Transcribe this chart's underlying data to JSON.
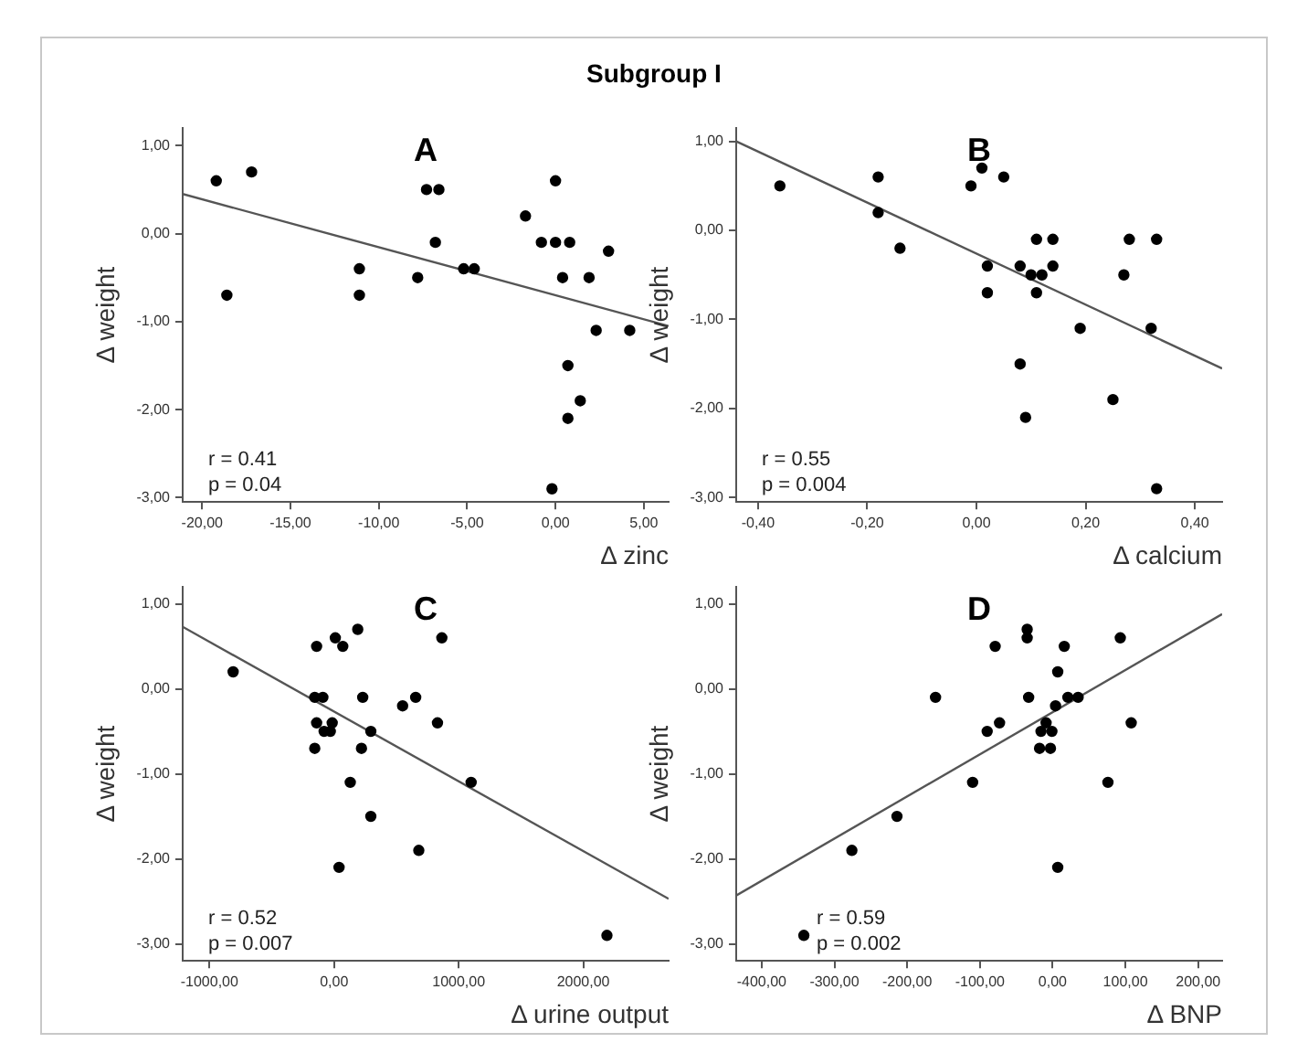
{
  "chart_data": [
    {
      "type": "scatter",
      "title": "A",
      "subtitle": "Subgroup I",
      "xlabel": "Δ zinc",
      "ylabel": "Δ weight",
      "annotations": [
        "r = 0.41",
        "p = 0.04"
      ],
      "grid": false,
      "legend": false,
      "marker": "circle",
      "xlim": [
        -21.1,
        6.4
      ],
      "xticks": [
        {
          "value": -20,
          "label": "-20,00"
        },
        {
          "value": -15,
          "label": "-15,00"
        },
        {
          "value": -10,
          "label": "-10,00"
        },
        {
          "value": -5,
          "label": "-5,00"
        },
        {
          "value": 0,
          "label": "0,00"
        },
        {
          "value": 5,
          "label": "5,00"
        }
      ],
      "ylim": [
        -3.05,
        1.2
      ],
      "yticks": [
        {
          "value": 1,
          "label": "1,00"
        },
        {
          "value": 0,
          "label": "0,00"
        },
        {
          "value": -1,
          "label": "-1,00"
        },
        {
          "value": -2,
          "label": "-2,00"
        },
        {
          "value": -3,
          "label": "-3,00"
        }
      ],
      "series": [
        {
          "color": "#000000",
          "x": [
            -19.2,
            -18.6,
            -17.2,
            -11.1,
            -11.1,
            -7.8,
            -7.3,
            -6.8,
            -6.6,
            -5.2,
            -4.6,
            -1.7,
            -0.8,
            0.0,
            0.0,
            -0.2,
            0.4,
            0.8,
            0.7,
            0.7,
            1.4,
            1.9,
            2.3,
            3.0,
            4.2
          ],
          "values": [
            0.6,
            -0.7,
            0.7,
            -0.4,
            -0.7,
            -0.5,
            0.5,
            -0.1,
            0.5,
            -0.4,
            -0.4,
            0.2,
            -0.1,
            0.6,
            -0.1,
            -2.9,
            -0.5,
            -0.1,
            -1.5,
            -2.1,
            -1.9,
            -0.5,
            -1.1,
            -0.2,
            -1.1
          ]
        },
        {
          "type": "line",
          "marker": "none",
          "color": "#555555",
          "x": [
            -21.1,
            6.4
          ],
          "values": [
            0.45,
            -1.05
          ]
        }
      ]
    },
    {
      "type": "scatter",
      "title": "B",
      "xlabel": "Δ calcium",
      "ylabel": "Δ weight",
      "annotations": [
        "r = 0.55",
        "p = 0.004"
      ],
      "grid": false,
      "legend": false,
      "marker": "circle",
      "xlim": [
        -0.44,
        0.45
      ],
      "xticks": [
        {
          "value": -0.4,
          "label": "-0,40"
        },
        {
          "value": -0.2,
          "label": "-0,20"
        },
        {
          "value": 0,
          "label": "0,00"
        },
        {
          "value": 0.2,
          "label": "0,20"
        },
        {
          "value": 0.4,
          "label": "0,40"
        }
      ],
      "ylim": [
        -3.05,
        1.15
      ],
      "yticks": [
        {
          "value": 1,
          "label": "1,00"
        },
        {
          "value": 0,
          "label": "0,00"
        },
        {
          "value": -1,
          "label": "-1,00"
        },
        {
          "value": -2,
          "label": "-2,00"
        },
        {
          "value": -3,
          "label": "-3,00"
        }
      ],
      "series": [
        {
          "color": "#000000",
          "x": [
            -0.36,
            -0.18,
            -0.18,
            -0.14,
            -0.01,
            0.01,
            0.05,
            0.02,
            0.02,
            0.08,
            0.1,
            0.12,
            0.11,
            0.11,
            0.14,
            0.14,
            0.08,
            0.09,
            0.19,
            0.25,
            0.27,
            0.28,
            0.32,
            0.33,
            0.33
          ],
          "values": [
            0.5,
            0.6,
            0.2,
            -0.2,
            0.5,
            0.7,
            0.6,
            -0.4,
            -0.7,
            -0.4,
            -0.5,
            -0.5,
            -0.1,
            -0.7,
            -0.1,
            -0.4,
            -1.5,
            -2.1,
            -1.1,
            -1.9,
            -0.5,
            -0.1,
            -1.1,
            -0.1,
            -2.9
          ]
        },
        {
          "type": "line",
          "marker": "none",
          "color": "#555555",
          "x": [
            -0.44,
            0.45
          ],
          "values": [
            1.0,
            -1.55
          ]
        }
      ]
    },
    {
      "type": "scatter",
      "title": "C",
      "xlabel": "Δ urine output",
      "ylabel": "Δ weight",
      "annotations": [
        "r = 0.52",
        "p = 0.007"
      ],
      "grid": false,
      "legend": false,
      "marker": "circle",
      "xlim": [
        -1215,
        2685
      ],
      "xticks": [
        {
          "value": -1000,
          "label": "-1000,00"
        },
        {
          "value": 0,
          "label": "0,00"
        },
        {
          "value": 1000,
          "label": "1000,00"
        },
        {
          "value": 2000,
          "label": "2000,00"
        }
      ],
      "ylim": [
        -3.2,
        1.2
      ],
      "yticks": [
        {
          "value": 1,
          "label": "1,00"
        },
        {
          "value": 0,
          "label": "0,00"
        },
        {
          "value": -1,
          "label": "-1,00"
        },
        {
          "value": -2,
          "label": "-2,00"
        },
        {
          "value": -3,
          "label": "-3,00"
        }
      ],
      "series": [
        {
          "color": "#000000",
          "x": [
            -810,
            -140,
            10,
            70,
            190,
            865,
            -155,
            -90,
            -140,
            -15,
            -155,
            -80,
            -30,
            230,
            220,
            130,
            295,
            550,
            655,
            830,
            295,
            680,
            40,
            1100,
            2190
          ],
          "values": [
            0.2,
            0.5,
            0.6,
            0.5,
            0.7,
            0.6,
            -0.1,
            -0.1,
            -0.4,
            -0.4,
            -0.7,
            -0.5,
            -0.5,
            -0.1,
            -0.7,
            -1.1,
            -0.5,
            -0.2,
            -0.1,
            -0.4,
            -1.5,
            -1.9,
            -2.1,
            -1.1,
            -2.9
          ]
        },
        {
          "type": "line",
          "marker": "none",
          "color": "#555555",
          "x": [
            -1215,
            2685
          ],
          "values": [
            0.73,
            -2.47
          ]
        }
      ]
    },
    {
      "type": "scatter",
      "title": "D",
      "xlabel": "Δ BNP",
      "ylabel": "Δ weight",
      "annotations": [
        "r = 0.59",
        "p = 0.002"
      ],
      "grid": false,
      "legend": false,
      "marker": "circle",
      "xlim": [
        -435,
        233
      ],
      "xticks": [
        {
          "value": -400,
          "label": "-400,00"
        },
        {
          "value": -300,
          "label": "-300,00"
        },
        {
          "value": -200,
          "label": "-200,00"
        },
        {
          "value": -100,
          "label": "-100,00"
        },
        {
          "value": 0,
          "label": "0,00"
        },
        {
          "value": 100,
          "label": "100,00"
        },
        {
          "value": 200,
          "label": "200,00"
        }
      ],
      "ylim": [
        -3.2,
        1.2
      ],
      "yticks": [
        {
          "value": 1,
          "label": "1,00"
        },
        {
          "value": 0,
          "label": "0,00"
        },
        {
          "value": -1,
          "label": "-1,00"
        },
        {
          "value": -2,
          "label": "-2,00"
        },
        {
          "value": -3,
          "label": "-3,00"
        }
      ],
      "series": [
        {
          "color": "#000000",
          "x": [
            -342,
            -276,
            -214,
            -161,
            -110,
            -90,
            -79,
            -73,
            -35,
            -35,
            -33,
            -18,
            -16,
            -9,
            -3,
            -1,
            4,
            7,
            7,
            16,
            21,
            35,
            76,
            93,
            108
          ],
          "values": [
            -2.9,
            -1.9,
            -1.5,
            -0.1,
            -1.1,
            -0.5,
            0.5,
            -0.4,
            0.7,
            0.6,
            -0.1,
            -0.7,
            -0.5,
            -0.4,
            -0.7,
            -0.5,
            -0.2,
            0.2,
            -2.1,
            0.5,
            -0.1,
            -0.1,
            -1.1,
            0.6,
            -0.4
          ]
        },
        {
          "type": "line",
          "marker": "none",
          "color": "#555555",
          "x": [
            -435,
            233
          ],
          "values": [
            -2.43,
            0.88
          ]
        }
      ]
    }
  ]
}
